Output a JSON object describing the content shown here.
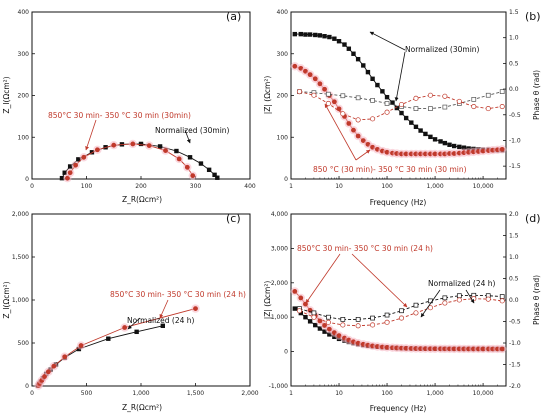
{
  "chart_data": [
    {
      "id": "a",
      "type": "scatter",
      "panel_label": "(a)",
      "xlabel": "Z_R(Ωcm²)",
      "ylabel": "Z_I(Ωcm²)",
      "xlim": [
        0,
        400
      ],
      "ylim": [
        0,
        400
      ],
      "x_ticks": [
        "0",
        "100",
        "200",
        "300",
        "400"
      ],
      "y_ticks": [
        "0",
        "100",
        "200",
        "300",
        "400"
      ],
      "series": [
        {
          "name": "Normalized (30min)",
          "color": "#111111",
          "marker": "square",
          "x": [
            55,
            60,
            70,
            85,
            110,
            135,
            165,
            200,
            235,
            265,
            290,
            310,
            325,
            335,
            340
          ],
          "y": [
            2,
            15,
            30,
            47,
            64,
            76,
            83,
            84,
            78,
            67,
            52,
            37,
            22,
            10,
            3
          ]
        },
        {
          "name": "850°C 30 min- 350 °C 30 min (30min)",
          "color": "#c0392b",
          "marker": "circle",
          "x": [
            65,
            70,
            80,
            95,
            120,
            150,
            185,
            215,
            245,
            270,
            285,
            295
          ],
          "y": [
            2,
            15,
            33,
            52,
            70,
            81,
            84,
            80,
            68,
            48,
            28,
            8
          ]
        }
      ],
      "annotations": [
        "Normalized (30min)",
        "850°C 30 min- 350 °C 30 min (30min)"
      ]
    },
    {
      "id": "b",
      "type": "scatter",
      "panel_label": "(b)",
      "xlabel": "Frequency (Hz)",
      "ylabel": "|Z| (Ωcm²)",
      "y2label": "Phase θ (rad)",
      "xscale": "log",
      "xlim": [
        1,
        30000
      ],
      "ylim": [
        0,
        400
      ],
      "y2lim": [
        -1.75,
        1.5
      ],
      "x_ticks": [
        "1",
        "10",
        "100",
        "1,000",
        "10,000"
      ],
      "y_ticks": [
        "0",
        "100",
        "200",
        "300",
        "400"
      ],
      "y2_ticks": [
        "-1.5",
        "-1.0",
        "-0.5",
        "0.0",
        "0.5",
        "1.0",
        "1.5"
      ],
      "series": [
        {
          "name": "Normalized (30min) |Z|",
          "color": "#111111",
          "marker": "square",
          "axis": "left",
          "x": [
            1.2,
            1.6,
            2,
            2.5,
            3.2,
            4,
            5,
            6.3,
            8,
            10,
            13,
            16,
            20,
            25,
            32,
            40,
            50,
            63,
            80,
            100,
            130,
            160,
            200,
            250,
            320,
            400,
            500,
            630,
            800,
            1000,
            1300,
            1600,
            2000,
            2500,
            3200,
            4000,
            5000,
            6300,
            8000,
            10000,
            13000,
            16000,
            20000,
            25000
          ],
          "y": [
            347,
            347,
            346,
            346,
            345,
            344,
            342,
            340,
            336,
            330,
            322,
            312,
            300,
            287,
            272,
            256,
            240,
            225,
            210,
            196,
            183,
            170,
            158,
            146,
            135,
            125,
            116,
            108,
            101,
            95,
            90,
            86,
            82,
            79,
            77,
            75,
            73,
            72,
            71,
            70,
            70,
            69,
            69,
            69
          ]
        },
        {
          "name": "850 °C (30 min)- 350 °C 30 min (30 min) |Z|",
          "color": "#c0392b",
          "marker": "circle",
          "axis": "left",
          "x": [
            1.2,
            1.6,
            2,
            2.5,
            3.2,
            4,
            5,
            6.3,
            8,
            10,
            13,
            16,
            20,
            25,
            32,
            40,
            50,
            63,
            80,
            100,
            130,
            160,
            200,
            250,
            320,
            400,
            500,
            630,
            800,
            1000,
            1300,
            1600,
            2000,
            2500,
            3200,
            4000,
            5000,
            6300,
            8000,
            10000,
            13000,
            16000,
            20000,
            25000
          ],
          "y": [
            270,
            265,
            258,
            250,
            240,
            228,
            215,
            200,
            185,
            168,
            150,
            133,
            117,
            103,
            92,
            83,
            76,
            71,
            67,
            64,
            62,
            61,
            60,
            60,
            60,
            60,
            60,
            60,
            60,
            60,
            60,
            60,
            61,
            61,
            62,
            63,
            64,
            65,
            66,
            67,
            68,
            69,
            70,
            71
          ]
        },
        {
          "name": "Normalized (30min) phase",
          "color": "#555555",
          "marker": "open-square",
          "axis": "right",
          "x": [
            1.5,
            3,
            6,
            12,
            25,
            50,
            100,
            200,
            400,
            800,
            1600,
            3200,
            6400,
            12800,
            25000
          ],
          "y": [
            -0.05,
            -0.07,
            -0.1,
            -0.13,
            -0.17,
            -0.22,
            -0.28,
            -0.34,
            -0.38,
            -0.38,
            -0.35,
            -0.28,
            -0.2,
            -0.12,
            -0.05
          ]
        },
        {
          "name": "850 °C (30 min)- 350 °C 30 min (30 min) phase",
          "color": "#c0392b",
          "marker": "open-circle",
          "axis": "right",
          "x": [
            1.5,
            3,
            6,
            12,
            25,
            50,
            100,
            200,
            400,
            800,
            1600,
            3200,
            6400,
            12800,
            25000
          ],
          "y": [
            -0.05,
            -0.12,
            -0.28,
            -0.48,
            -0.6,
            -0.58,
            -0.45,
            -0.3,
            -0.18,
            -0.12,
            -0.14,
            -0.24,
            -0.34,
            -0.38,
            -0.34
          ]
        }
      ],
      "annotations": [
        "Normalized (30min)",
        "850 °C (30 min)- 350 °C 30 min (30 min)"
      ]
    },
    {
      "id": "c",
      "type": "scatter",
      "panel_label": "(c)",
      "xlabel": "Z_R(Ωcm²)",
      "ylabel": "Z_I(Ωcm²)",
      "xlim": [
        0,
        2000
      ],
      "ylim": [
        0,
        2000
      ],
      "x_ticks": [
        "0",
        "500",
        "1,000",
        "1,500",
        "2,000"
      ],
      "y_ticks": [
        "0",
        "500",
        "1,000",
        "1,500",
        "2,000"
      ],
      "series": [
        {
          "name": "Normalized (24 h)",
          "color": "#111111",
          "marker": "square",
          "x": [
            55,
            65,
            80,
            100,
            130,
            170,
            220,
            300,
            430,
            700,
            960,
            1200
          ],
          "y": [
            5,
            25,
            50,
            90,
            140,
            190,
            250,
            330,
            430,
            550,
            630,
            700
          ]
        },
        {
          "name": "850°C 30 min- 350 °C 30 min (24 h)",
          "color": "#c0392b",
          "marker": "circle",
          "x": [
            60,
            70,
            90,
            115,
            150,
            200,
            300,
            450,
            850,
            1500
          ],
          "y": [
            5,
            30,
            65,
            110,
            165,
            230,
            340,
            470,
            680,
            900
          ]
        }
      ],
      "annotations": [
        "850°C 30 min- 350 °C 30 min (24 h)",
        "Normalized (24 h)"
      ]
    },
    {
      "id": "d",
      "type": "scatter",
      "panel_label": "(d)",
      "xlabel": "Frequency (Hz)",
      "ylabel": "|Z| (Ωcm²)",
      "y2label": "Phase θ (rad)",
      "xscale": "log",
      "xlim": [
        1,
        30000
      ],
      "ylim": [
        -1000,
        4000
      ],
      "y2lim": [
        -2.0,
        2.0
      ],
      "x_ticks": [
        "1",
        "10",
        "100",
        "1,000",
        "10,000"
      ],
      "y_ticks": [
        "-1,000",
        "0",
        "1,000",
        "2,000",
        "3,000",
        "4,000"
      ],
      "y2_ticks": [
        "-2.0",
        "-1.5",
        "-1.0",
        "-0.5",
        "0.0",
        "0.5",
        "1.0",
        "1.5",
        "2.0"
      ],
      "series": [
        {
          "name": "Normalized (24 h) |Z|",
          "color": "#111111",
          "marker": "square",
          "axis": "left",
          "x": [
            1.2,
            1.6,
            2,
            2.5,
            3.2,
            4,
            5,
            6.3,
            8,
            10,
            13,
            16,
            20,
            25,
            32,
            40,
            50,
            63,
            80,
            100,
            130,
            160,
            200,
            250,
            320,
            400,
            500,
            630,
            800,
            1000,
            1300,
            1600,
            2000,
            2500,
            3200,
            4000,
            5000,
            6300,
            8000,
            10000,
            13000,
            16000,
            20000,
            25000
          ],
          "y": [
            1250,
            1120,
            1000,
            880,
            770,
            670,
            580,
            500,
            430,
            370,
            320,
            280,
            245,
            215,
            190,
            170,
            155,
            140,
            128,
            118,
            110,
            104,
            98,
            94,
            90,
            87,
            85,
            83,
            82,
            81,
            80,
            80,
            79,
            79,
            78,
            78,
            78,
            77,
            77,
            77,
            76,
            76,
            76,
            76
          ]
        },
        {
          "name": "850°C 30 min- 350 °C 30 min (24 h) |Z|",
          "color": "#c0392b",
          "marker": "circle",
          "axis": "left",
          "x": [
            1.2,
            1.6,
            2,
            2.5,
            3.2,
            4,
            5,
            6.3,
            8,
            10,
            13,
            16,
            20,
            25,
            32,
            40,
            50,
            63,
            80,
            100,
            130,
            160,
            200,
            250,
            320,
            400,
            500,
            630,
            800,
            1000,
            1300,
            1600,
            2000,
            2500,
            3200,
            4000,
            5000,
            6300,
            8000,
            10000,
            13000,
            16000,
            20000,
            25000
          ],
          "y": [
            1750,
            1560,
            1380,
            1200,
            1040,
            890,
            760,
            650,
            550,
            465,
            395,
            335,
            285,
            245,
            212,
            186,
            165,
            148,
            134,
            122,
            113,
            106,
            100,
            95,
            91,
            88,
            86,
            84,
            83,
            82,
            81,
            80,
            80,
            79,
            79,
            78,
            78,
            78,
            77,
            77,
            77,
            76,
            76,
            76
          ]
        },
        {
          "name": "Normalized (24 h) phase",
          "color": "#111111",
          "marker": "open-square",
          "axis": "right",
          "x": [
            1.5,
            3,
            6,
            12,
            25,
            50,
            100,
            200,
            400,
            800,
            1600,
            3200,
            6400,
            12800,
            25000
          ],
          "y": [
            -0.2,
            -0.3,
            -0.4,
            -0.45,
            -0.45,
            -0.42,
            -0.35,
            -0.25,
            -0.12,
            -0.02,
            0.05,
            0.1,
            0.11,
            0.1,
            0.08
          ]
        },
        {
          "name": "850°C 30 min- 350 °C 30 min (24 h) phase",
          "color": "#c0392b",
          "marker": "open-circle",
          "axis": "right",
          "x": [
            1.5,
            3,
            6,
            12,
            25,
            50,
            100,
            200,
            400,
            800,
            1600,
            3200,
            6400,
            12800,
            25000
          ],
          "y": [
            -0.25,
            -0.4,
            -0.52,
            -0.58,
            -0.6,
            -0.58,
            -0.52,
            -0.42,
            -0.3,
            -0.18,
            -0.07,
            0.0,
            0.03,
            0.02,
            -0.02
          ]
        }
      ],
      "annotations": [
        "850°C 30 min- 350 °C 30 min (24 h)",
        "Normalized (24 h)"
      ]
    }
  ]
}
